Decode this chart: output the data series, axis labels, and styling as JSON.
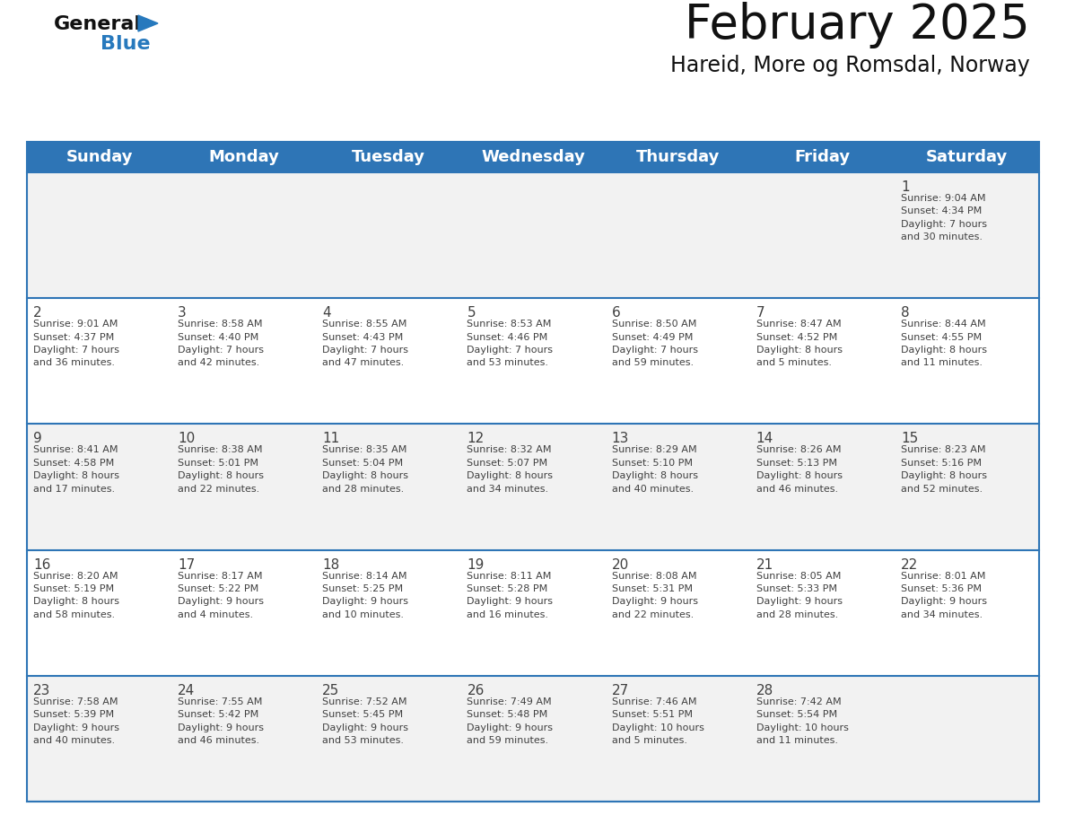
{
  "title": "February 2025",
  "subtitle": "Hareid, More og Romsdal, Norway",
  "header_color": "#2E75B6",
  "header_text_color": "#FFFFFF",
  "day_names": [
    "Sunday",
    "Monday",
    "Tuesday",
    "Wednesday",
    "Thursday",
    "Friday",
    "Saturday"
  ],
  "title_fontsize": 38,
  "subtitle_fontsize": 17,
  "header_fontsize": 13,
  "cell_fontsize": 8.0,
  "day_num_fontsize": 11,
  "logo_general_color": "#1a1a1a",
  "logo_blue_color": "#2779BD",
  "bg_color": "#FFFFFF",
  "cell_bg_even": "#F2F2F2",
  "cell_bg_odd": "#FFFFFF",
  "divider_color": "#2E75B6",
  "text_color": "#404040",
  "calendar": [
    [
      {
        "day": null,
        "info": null
      },
      {
        "day": null,
        "info": null
      },
      {
        "day": null,
        "info": null
      },
      {
        "day": null,
        "info": null
      },
      {
        "day": null,
        "info": null
      },
      {
        "day": null,
        "info": null
      },
      {
        "day": 1,
        "info": "Sunrise: 9:04 AM\nSunset: 4:34 PM\nDaylight: 7 hours\nand 30 minutes."
      }
    ],
    [
      {
        "day": 2,
        "info": "Sunrise: 9:01 AM\nSunset: 4:37 PM\nDaylight: 7 hours\nand 36 minutes."
      },
      {
        "day": 3,
        "info": "Sunrise: 8:58 AM\nSunset: 4:40 PM\nDaylight: 7 hours\nand 42 minutes."
      },
      {
        "day": 4,
        "info": "Sunrise: 8:55 AM\nSunset: 4:43 PM\nDaylight: 7 hours\nand 47 minutes."
      },
      {
        "day": 5,
        "info": "Sunrise: 8:53 AM\nSunset: 4:46 PM\nDaylight: 7 hours\nand 53 minutes."
      },
      {
        "day": 6,
        "info": "Sunrise: 8:50 AM\nSunset: 4:49 PM\nDaylight: 7 hours\nand 59 minutes."
      },
      {
        "day": 7,
        "info": "Sunrise: 8:47 AM\nSunset: 4:52 PM\nDaylight: 8 hours\nand 5 minutes."
      },
      {
        "day": 8,
        "info": "Sunrise: 8:44 AM\nSunset: 4:55 PM\nDaylight: 8 hours\nand 11 minutes."
      }
    ],
    [
      {
        "day": 9,
        "info": "Sunrise: 8:41 AM\nSunset: 4:58 PM\nDaylight: 8 hours\nand 17 minutes."
      },
      {
        "day": 10,
        "info": "Sunrise: 8:38 AM\nSunset: 5:01 PM\nDaylight: 8 hours\nand 22 minutes."
      },
      {
        "day": 11,
        "info": "Sunrise: 8:35 AM\nSunset: 5:04 PM\nDaylight: 8 hours\nand 28 minutes."
      },
      {
        "day": 12,
        "info": "Sunrise: 8:32 AM\nSunset: 5:07 PM\nDaylight: 8 hours\nand 34 minutes."
      },
      {
        "day": 13,
        "info": "Sunrise: 8:29 AM\nSunset: 5:10 PM\nDaylight: 8 hours\nand 40 minutes."
      },
      {
        "day": 14,
        "info": "Sunrise: 8:26 AM\nSunset: 5:13 PM\nDaylight: 8 hours\nand 46 minutes."
      },
      {
        "day": 15,
        "info": "Sunrise: 8:23 AM\nSunset: 5:16 PM\nDaylight: 8 hours\nand 52 minutes."
      }
    ],
    [
      {
        "day": 16,
        "info": "Sunrise: 8:20 AM\nSunset: 5:19 PM\nDaylight: 8 hours\nand 58 minutes."
      },
      {
        "day": 17,
        "info": "Sunrise: 8:17 AM\nSunset: 5:22 PM\nDaylight: 9 hours\nand 4 minutes."
      },
      {
        "day": 18,
        "info": "Sunrise: 8:14 AM\nSunset: 5:25 PM\nDaylight: 9 hours\nand 10 minutes."
      },
      {
        "day": 19,
        "info": "Sunrise: 8:11 AM\nSunset: 5:28 PM\nDaylight: 9 hours\nand 16 minutes."
      },
      {
        "day": 20,
        "info": "Sunrise: 8:08 AM\nSunset: 5:31 PM\nDaylight: 9 hours\nand 22 minutes."
      },
      {
        "day": 21,
        "info": "Sunrise: 8:05 AM\nSunset: 5:33 PM\nDaylight: 9 hours\nand 28 minutes."
      },
      {
        "day": 22,
        "info": "Sunrise: 8:01 AM\nSunset: 5:36 PM\nDaylight: 9 hours\nand 34 minutes."
      }
    ],
    [
      {
        "day": 23,
        "info": "Sunrise: 7:58 AM\nSunset: 5:39 PM\nDaylight: 9 hours\nand 40 minutes."
      },
      {
        "day": 24,
        "info": "Sunrise: 7:55 AM\nSunset: 5:42 PM\nDaylight: 9 hours\nand 46 minutes."
      },
      {
        "day": 25,
        "info": "Sunrise: 7:52 AM\nSunset: 5:45 PM\nDaylight: 9 hours\nand 53 minutes."
      },
      {
        "day": 26,
        "info": "Sunrise: 7:49 AM\nSunset: 5:48 PM\nDaylight: 9 hours\nand 59 minutes."
      },
      {
        "day": 27,
        "info": "Sunrise: 7:46 AM\nSunset: 5:51 PM\nDaylight: 10 hours\nand 5 minutes."
      },
      {
        "day": 28,
        "info": "Sunrise: 7:42 AM\nSunset: 5:54 PM\nDaylight: 10 hours\nand 11 minutes."
      },
      {
        "day": null,
        "info": null
      }
    ]
  ]
}
